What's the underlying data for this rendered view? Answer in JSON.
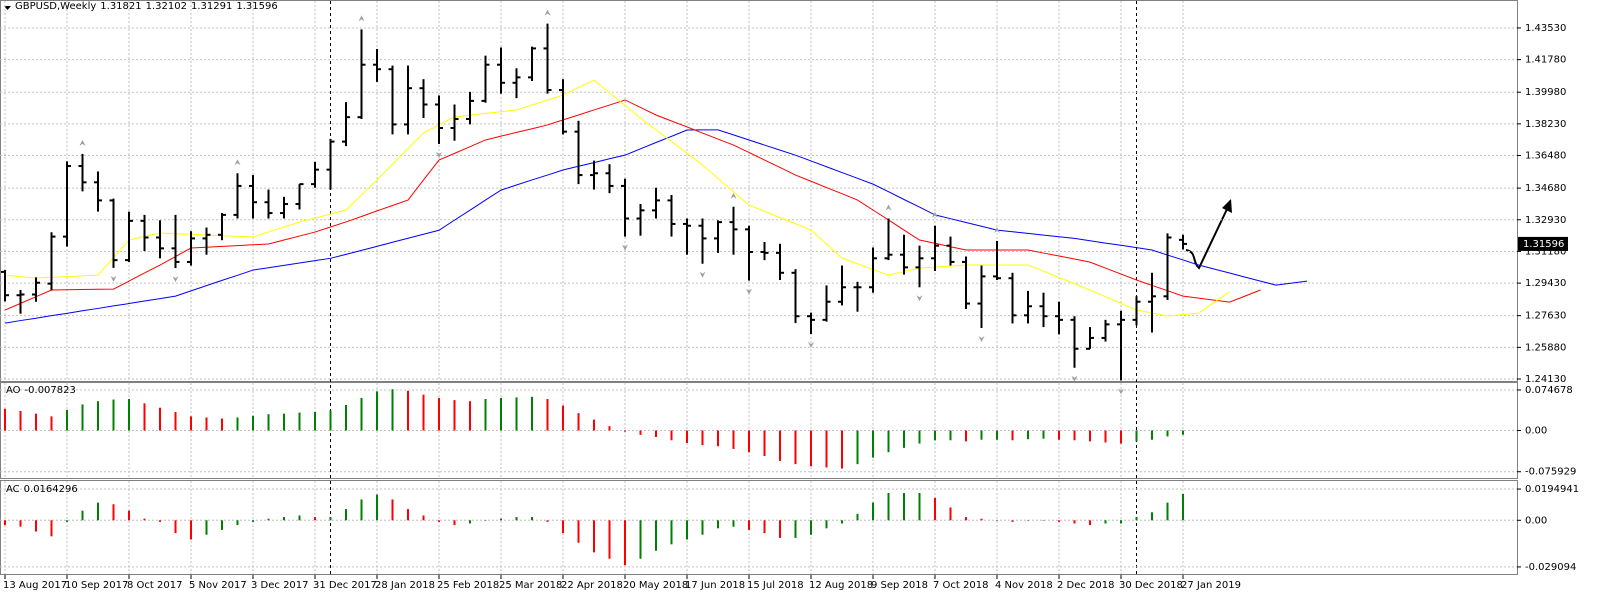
{
  "chart_data": [
    {
      "type": "ohlc",
      "title": "GBPUSD,Weekly",
      "bar_color": "#000000",
      "grid": true,
      "categories": [
        "13 Aug 2017",
        null,
        null,
        null,
        "10 Sep 2017",
        null,
        null,
        null,
        "8 Oct 2017",
        null,
        null,
        null,
        "5 Nov 2017",
        null,
        null,
        null,
        "3 Dec 2017",
        null,
        null,
        null,
        "31 Dec 2017",
        null,
        null,
        null,
        "28 Jan 2018",
        null,
        null,
        null,
        "25 Feb 2018",
        null,
        null,
        null,
        "25 Mar 2018",
        null,
        null,
        null,
        "22 Apr 2018",
        null,
        null,
        null,
        "20 May 2018",
        null,
        null,
        null,
        "17 Jun 2018",
        null,
        null,
        null,
        "15 Jul 2018",
        null,
        null,
        null,
        "12 Aug 2018",
        null,
        null,
        null,
        "9 Sep 2018",
        null,
        null,
        null,
        "7 Oct 2018",
        null,
        null,
        null,
        "4 Nov 2018",
        null,
        null,
        null,
        "2 Dec 2018",
        null,
        null,
        null,
        "30 Dec 2018",
        null,
        null,
        null,
        "27 Jan 2019",
        null,
        null,
        null,
        null,
        null,
        null,
        null,
        null
      ],
      "open": [
        1.3005,
        1.2876,
        1.288,
        1.294,
        1.32,
        1.359,
        1.35,
        1.34,
        1.307,
        1.3287,
        1.3195,
        1.3135,
        1.306,
        1.319,
        1.321,
        1.332,
        1.348,
        1.339,
        1.333,
        1.338,
        1.349,
        1.357,
        1.3725,
        1.386,
        1.415,
        1.4125,
        1.382,
        1.402,
        1.393,
        1.38,
        1.385,
        1.395,
        1.415,
        1.405,
        1.408,
        1.424,
        1.401,
        1.378,
        1.354,
        1.355,
        1.348,
        1.33,
        1.3345,
        1.34,
        1.327,
        1.326,
        1.319,
        1.328,
        1.324,
        1.3115,
        1.311,
        1.3,
        1.276,
        1.274,
        1.284,
        1.292,
        1.292,
        1.308,
        1.31,
        1.303,
        1.308,
        1.315,
        1.306,
        1.283,
        1.298,
        1.297,
        1.2765,
        1.2815,
        1.276,
        1.274,
        1.258,
        1.264,
        1.2715,
        1.274,
        1.284,
        1.287,
        1.31821,
        null,
        null,
        null,
        null,
        null,
        null,
        null,
        null
      ],
      "high": [
        1.3015,
        1.2905,
        1.2975,
        1.3224,
        1.3616,
        1.3657,
        1.356,
        1.341,
        1.3338,
        1.332,
        1.329,
        1.332,
        1.323,
        1.325,
        1.333,
        1.355,
        1.354,
        1.346,
        1.342,
        1.349,
        1.3613,
        1.374,
        1.3943,
        1.4345,
        1.4237,
        1.4145,
        1.4145,
        1.407,
        1.398,
        1.393,
        1.4,
        1.42,
        1.4245,
        1.413,
        1.425,
        1.4377,
        1.407,
        1.384,
        1.362,
        1.36,
        1.352,
        1.338,
        1.347,
        1.343,
        1.33,
        1.33,
        1.329,
        1.3365,
        1.326,
        1.317,
        1.316,
        1.302,
        1.278,
        1.293,
        1.304,
        1.295,
        1.314,
        1.33,
        1.321,
        1.315,
        1.326,
        1.32,
        1.309,
        1.304,
        1.3176,
        1.3,
        1.29,
        1.289,
        1.284,
        1.276,
        1.27,
        1.274,
        1.279,
        1.287,
        1.3,
        1.3218,
        1.32102,
        null,
        null,
        null,
        null,
        null,
        null,
        null,
        null
      ],
      "low": [
        1.2842,
        1.2774,
        1.284,
        1.2903,
        1.3145,
        1.345,
        1.3338,
        1.3027,
        1.306,
        1.312,
        1.308,
        1.3026,
        1.304,
        1.31,
        1.318,
        1.33,
        1.33,
        1.33,
        1.33,
        1.335,
        1.347,
        1.346,
        1.37,
        1.385,
        1.4055,
        1.3765,
        1.3765,
        1.3855,
        1.3712,
        1.373,
        1.382,
        1.394,
        1.399,
        1.3965,
        1.406,
        1.399,
        1.3765,
        1.349,
        1.346,
        1.344,
        1.32,
        1.3205,
        1.33,
        1.32,
        1.31,
        1.305,
        1.311,
        1.31,
        1.2957,
        1.307,
        1.296,
        1.2722,
        1.2662,
        1.273,
        1.282,
        1.2785,
        1.289,
        1.307,
        1.299,
        1.292,
        1.301,
        1.304,
        1.28,
        1.2695,
        1.296,
        1.272,
        1.272,
        1.27,
        1.266,
        1.2475,
        1.258,
        1.262,
        1.2405,
        1.271,
        1.267,
        1.285,
        1.31291,
        null,
        null,
        null,
        null,
        null,
        null,
        null,
        null
      ],
      "close": [
        1.2876,
        1.288,
        1.2945,
        1.32,
        1.359,
        1.35,
        1.34,
        1.307,
        1.3287,
        1.3195,
        1.3135,
        1.306,
        1.319,
        1.321,
        1.332,
        1.348,
        1.339,
        1.333,
        1.338,
        1.349,
        1.357,
        1.3725,
        1.386,
        1.415,
        1.4125,
        1.382,
        1.402,
        1.393,
        1.38,
        1.385,
        1.395,
        1.415,
        1.405,
        1.408,
        1.424,
        1.401,
        1.378,
        1.354,
        1.355,
        1.348,
        1.33,
        1.3345,
        1.34,
        1.327,
        1.326,
        1.319,
        1.328,
        1.324,
        1.3115,
        1.311,
        1.3,
        1.276,
        1.274,
        1.284,
        1.292,
        1.292,
        1.308,
        1.31,
        1.303,
        1.308,
        1.315,
        1.306,
        1.283,
        1.298,
        1.297,
        1.2765,
        1.2815,
        1.276,
        1.274,
        1.258,
        1.264,
        1.2715,
        1.274,
        1.284,
        1.287,
        1.3195,
        1.31596,
        null,
        null,
        null,
        null,
        null,
        null,
        null,
        null
      ],
      "series": [
        {
          "color": "#0000ff",
          "values": [
            1.2722,
            1.2736,
            1.2749,
            1.2763,
            1.2776,
            1.279,
            1.2803,
            1.2817,
            1.283,
            1.2844,
            1.2857,
            1.2871,
            1.29,
            1.2929,
            1.2958,
            1.2986,
            1.3015,
            1.3028,
            1.3041,
            1.3054,
            1.3067,
            1.308,
            1.3102,
            1.3124,
            1.3146,
            1.3169,
            1.3191,
            1.3213,
            1.3235,
            1.3291,
            1.3346,
            1.3402,
            1.3457,
            1.3485,
            1.3513,
            1.354,
            1.3568,
            1.3589,
            1.3609,
            1.363,
            1.365,
            1.3685,
            1.372,
            1.3754,
            1.3789,
            1.379,
            1.379,
            1.3762,
            1.3734,
            1.3706,
            1.3678,
            1.365,
            1.3618,
            1.3586,
            1.3554,
            1.3522,
            1.349,
            1.3448,
            1.3405,
            1.3363,
            1.332,
            1.3299,
            1.3278,
            1.3257,
            1.3236,
            1.3227,
            1.3218,
            1.3208,
            1.3199,
            1.319,
            1.3177,
            1.3164,
            1.3152,
            1.3139,
            1.3126,
            1.3098,
            1.3071,
            1.3043,
            1.3021,
            1.2999,
            1.2976,
            1.2954,
            1.2932,
            1.2943,
            1.2954
          ]
        },
        {
          "color": "#ff0000",
          "values": [
            1.2794,
            1.2831,
            1.2868,
            1.2905,
            1.2906,
            1.2908,
            1.2909,
            1.291,
            1.2954,
            1.2999,
            1.3043,
            1.309,
            1.3137,
            1.3141,
            1.3146,
            1.315,
            1.3155,
            1.3159,
            1.3181,
            1.3203,
            1.3225,
            1.3253,
            1.3281,
            1.3311,
            1.3342,
            1.3372,
            1.3402,
            1.3513,
            1.3623,
            1.366,
            1.3697,
            1.3734,
            1.3755,
            1.3776,
            1.3796,
            1.3817,
            1.3845,
            1.3872,
            1.39,
            1.3927,
            1.3955,
            1.3914,
            1.3872,
            1.3839,
            1.3806,
            1.3772,
            1.3739,
            1.3706,
            1.3665,
            1.3623,
            1.3582,
            1.354,
            1.3506,
            1.3471,
            1.3437,
            1.3402,
            1.3347,
            1.3292,
            1.3236,
            1.3181,
            1.3163,
            1.3144,
            1.3126,
            1.3126,
            1.3126,
            1.3126,
            1.3126,
            1.3109,
            1.3093,
            1.3076,
            1.3059,
            1.3026,
            1.2993,
            1.296,
            1.293,
            1.2901,
            1.2871,
            1.286,
            1.2849,
            1.2838,
            1.2871,
            1.2905,
            null,
            null,
            null
          ]
        },
        {
          "color": "#ffff00",
          "values": [
            1.2987,
            1.2979,
            1.2971,
            1.2975,
            1.2979,
            1.2983,
            1.2987,
            1.3084,
            1.3181,
            1.3201,
            1.322,
            1.3216,
            1.3213,
            1.3209,
            1.3205,
            1.3202,
            1.3198,
            1.3226,
            1.3253,
            1.3281,
            1.3303,
            1.3325,
            1.3347,
            1.343,
            1.3513,
            1.36,
            1.3686,
            1.3773,
            1.3817,
            1.3861,
            1.3871,
            1.3881,
            1.389,
            1.39,
            1.3927,
            1.3955,
            1.3982,
            1.4024,
            1.4065,
            1.3995,
            1.3925,
            1.3855,
            1.379,
            1.3726,
            1.3661,
            1.3596,
            1.3522,
            1.3448,
            1.3374,
            1.334,
            1.3305,
            1.3271,
            1.3236,
            1.3159,
            1.3081,
            1.305,
            1.3018,
            1.2987,
            1.3007,
            1.3026,
            1.3032,
            1.3037,
            1.3043,
            1.3043,
            1.3043,
            1.3043,
            1.3043,
            1.3009,
            1.2974,
            1.294,
            1.2905,
            1.2868,
            1.2831,
            1.2794,
            1.2778,
            1.2761,
            1.2769,
            1.2777,
            1.2836,
            1.2894,
            null,
            null,
            null,
            null,
            null
          ]
        }
      ],
      "ylim": [
        1.2402,
        1.4502
      ],
      "yticks": [
        {
          "value": 1.4353,
          "label": "1.43530"
        },
        {
          "value": 1.4178,
          "label": "1.41780"
        },
        {
          "value": 1.3998,
          "label": "1.39980"
        },
        {
          "value": 1.3823,
          "label": "1.38230"
        },
        {
          "value": 1.3648,
          "label": "1.36480"
        },
        {
          "value": 1.3468,
          "label": "1.34680"
        },
        {
          "value": 1.3293,
          "label": "1.32930"
        },
        {
          "value": 1.3118,
          "label": "1.31180"
        },
        {
          "value": 1.2943,
          "label": "1.29430"
        },
        {
          "value": 1.2763,
          "label": "1.27630"
        },
        {
          "value": 1.2588,
          "label": "1.25880"
        },
        {
          "value": 1.2413,
          "label": "1.24130"
        }
      ]
    },
    {
      "type": "bar",
      "title": "AO",
      "up_color": "#008000",
      "down_color": "#ff0000",
      "grid": true,
      "values": [
        0.04,
        0.036,
        0.031,
        0.026,
        0.038,
        0.048,
        0.054,
        0.057,
        0.058,
        0.05,
        0.042,
        0.034,
        0.026,
        0.024,
        0.022,
        0.024,
        0.027,
        0.03,
        0.031,
        0.033,
        0.034,
        0.037,
        0.047,
        0.06,
        0.072,
        0.076,
        0.073,
        0.066,
        0.06,
        0.056,
        0.054,
        0.058,
        0.06,
        0.061,
        0.062,
        0.058,
        0.046,
        0.032,
        0.02,
        0.008,
        -0.002,
        -0.008,
        -0.012,
        -0.018,
        -0.023,
        -0.027,
        -0.029,
        -0.034,
        -0.04,
        -0.047,
        -0.056,
        -0.062,
        -0.066,
        -0.068,
        -0.07,
        -0.062,
        -0.05,
        -0.04,
        -0.032,
        -0.024,
        -0.018,
        -0.018,
        -0.02,
        -0.017,
        -0.017,
        -0.018,
        -0.016,
        -0.015,
        -0.017,
        -0.018,
        -0.02,
        -0.022,
        -0.024,
        -0.02,
        -0.017,
        -0.011,
        -0.007823
      ],
      "ylim": [
        -0.0875,
        0.0875
      ],
      "yticks": [
        0.074678,
        {
          "value": 0,
          "label": "0.00"
        },
        -0.075929
      ]
    },
    {
      "type": "bar",
      "title": "AC",
      "up_color": "#008000",
      "down_color": "#ff0000",
      "grid": true,
      "values": [
        -0.003,
        -0.004,
        -0.007,
        -0.01,
        -0.001,
        0.006,
        0.011,
        0.01,
        0.006,
        0.001,
        -0.001,
        -0.008,
        -0.012,
        -0.009,
        -0.006,
        -0.003,
        -0.001,
        0.001,
        0.002,
        0.003,
        0.002,
        0.002,
        0.007,
        0.013,
        0.016,
        0.013,
        0.007,
        0.003,
        -0.001,
        -0.003,
        -0.002,
        0.0,
        0.001,
        0.002,
        0.002,
        -0.001,
        -0.008,
        -0.014,
        -0.02,
        -0.024,
        -0.028,
        -0.024,
        -0.019,
        -0.015,
        -0.012,
        -0.009,
        -0.005,
        -0.004,
        -0.006,
        -0.008,
        -0.011,
        -0.011,
        -0.009,
        -0.005,
        -0.002,
        0.004,
        0.011,
        0.017,
        0.017,
        0.017,
        0.014,
        0.008,
        0.002,
        0.001,
        0.0,
        -0.001,
        0.0,
        0.0,
        -0.001,
        -0.002,
        -0.003,
        -0.002,
        -0.002,
        0.002,
        0.005,
        0.011,
        0.0164296
      ],
      "ylim": [
        -0.0335,
        0.0245
      ],
      "yticks": [
        0.0194941,
        {
          "value": 0,
          "label": "0.00"
        },
        -0.029094
      ]
    }
  ]
}
